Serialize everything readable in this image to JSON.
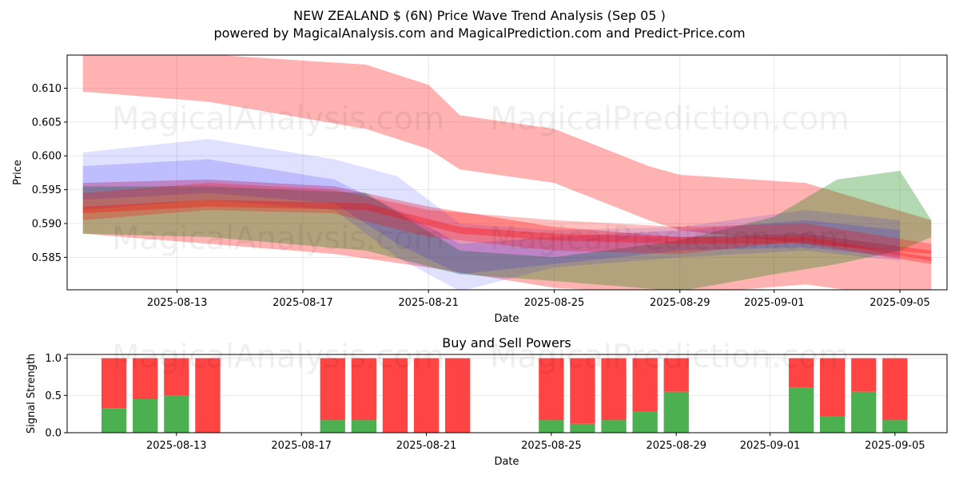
{
  "header": {
    "title": "NEW ZEALAND $ (6N) Price Wave Trend Analysis (Sep 05 )",
    "subtitle": "powered by MagicalAnalysis.com and MagicalPrediction.com and Predict-Price.com"
  },
  "watermarks": [
    "MagicalAnalysis.com",
    "MagicalPrediction.com"
  ],
  "colors": {
    "red": "#ff0000",
    "green": "#008000",
    "blue": "#0000ff",
    "bar_buy": "#4caf50",
    "bar_sell": "#ff4444"
  },
  "chart_data": [
    {
      "type": "area",
      "xlabel": "Date",
      "ylabel": "Price",
      "x_ticks": [
        "2025-08-13",
        "2025-08-17",
        "2025-08-21",
        "2025-08-25",
        "2025-08-29",
        "2025-09-01",
        "2025-09-05"
      ],
      "y_ticks": [
        "0.585",
        "0.590",
        "0.595",
        "0.600",
        "0.605",
        "0.610"
      ],
      "xlim": [
        "2025-08-09T12:00",
        "2025-09-06T12:00"
      ],
      "ylim": [
        0.5802,
        0.6149
      ],
      "grid": true,
      "bands": [
        {
          "color": "red",
          "opacity": 0.3,
          "x": [
            "2025-08-10",
            "2025-08-14",
            "2025-08-19",
            "2025-08-21",
            "2025-08-22",
            "2025-08-25",
            "2025-08-28",
            "2025-08-29",
            "2025-09-02",
            "2025-09-06"
          ],
          "upper": [
            0.6155,
            0.615,
            0.6135,
            0.6105,
            0.606,
            0.604,
            0.5985,
            0.5972,
            0.596,
            0.5905
          ],
          "lower": [
            0.6095,
            0.608,
            0.604,
            0.601,
            0.598,
            0.596,
            0.5905,
            0.589,
            0.587,
            0.5855
          ]
        },
        {
          "color": "red",
          "opacity": 0.3,
          "x": [
            "2025-08-10",
            "2025-08-14",
            "2025-08-18",
            "2025-08-21",
            "2025-08-25",
            "2025-08-29",
            "2025-09-02",
            "2025-09-06"
          ],
          "upper": [
            0.596,
            0.5965,
            0.5955,
            0.5925,
            0.5895,
            0.588,
            0.5885,
            0.586
          ],
          "lower": [
            0.5885,
            0.587,
            0.5855,
            0.5835,
            0.5805,
            0.5795,
            0.581,
            0.5785
          ]
        },
        {
          "color": "green",
          "opacity": 0.3,
          "x": [
            "2025-08-10",
            "2025-08-14",
            "2025-08-19",
            "2025-08-22",
            "2025-08-25",
            "2025-08-29",
            "2025-09-01",
            "2025-09-03",
            "2025-09-05",
            "2025-09-06"
          ],
          "upper": [
            0.5955,
            0.5955,
            0.5945,
            0.586,
            0.585,
            0.5875,
            0.591,
            0.5965,
            0.5978,
            0.5905
          ],
          "lower": [
            0.5885,
            0.588,
            0.586,
            0.5825,
            0.5815,
            0.58,
            0.5825,
            0.584,
            0.586,
            0.588
          ]
        },
        {
          "color": "blue",
          "opacity": 0.12,
          "x": [
            "2025-08-10",
            "2025-08-14",
            "2025-08-18",
            "2025-08-20",
            "2025-08-22",
            "2025-08-25",
            "2025-08-29",
            "2025-09-02",
            "2025-09-05"
          ],
          "upper": [
            0.6005,
            0.6025,
            0.5995,
            0.597,
            0.59,
            0.589,
            0.5895,
            0.592,
            0.5905
          ],
          "lower": [
            0.592,
            0.5935,
            0.592,
            0.585,
            0.58,
            0.5835,
            0.585,
            0.586,
            0.5845
          ]
        },
        {
          "color": "blue",
          "opacity": 0.15,
          "x": [
            "2025-08-10",
            "2025-08-14",
            "2025-08-18",
            "2025-08-20",
            "2025-08-22",
            "2025-08-25",
            "2025-08-29",
            "2025-09-02",
            "2025-09-05"
          ],
          "upper": [
            0.5985,
            0.5995,
            0.5965,
            0.592,
            0.587,
            0.588,
            0.589,
            0.5905,
            0.589
          ],
          "lower": [
            0.5935,
            0.5945,
            0.593,
            0.587,
            0.5825,
            0.584,
            0.586,
            0.5865,
            0.585
          ]
        },
        {
          "color": "red",
          "opacity": 0.25,
          "x": [
            "2025-08-10",
            "2025-08-14",
            "2025-08-18",
            "2025-08-21",
            "2025-08-25",
            "2025-08-29",
            "2025-09-02",
            "2025-09-06"
          ],
          "upper": [
            0.5945,
            0.596,
            0.595,
            0.592,
            0.5905,
            0.5895,
            0.59,
            0.587
          ],
          "lower": [
            0.5905,
            0.592,
            0.5915,
            0.588,
            0.586,
            0.5855,
            0.5875,
            0.5845
          ]
        },
        {
          "color": "red",
          "opacity": 0.3,
          "x": [
            "2025-08-10",
            "2025-08-14",
            "2025-08-19",
            "2025-08-22",
            "2025-08-25",
            "2025-08-29",
            "2025-09-02",
            "2025-09-06"
          ],
          "upper": [
            0.5925,
            0.5935,
            0.593,
            0.5895,
            0.5885,
            0.588,
            0.588,
            0.585
          ],
          "lower": [
            0.5915,
            0.5925,
            0.592,
            0.5885,
            0.5875,
            0.587,
            0.587,
            0.584
          ]
        }
      ]
    },
    {
      "type": "bar",
      "title": "Buy and Sell Powers",
      "xlabel": "Date",
      "ylabel": "Signal Strength",
      "ylim": [
        0,
        1.05
      ],
      "y_ticks": [
        "0.0",
        "0.5",
        "1.0"
      ],
      "x_ticks": [
        "2025-08-13",
        "2025-08-17",
        "2025-08-21",
        "2025-08-25",
        "2025-08-29",
        "2025-09-01",
        "2025-09-05"
      ],
      "xlim": [
        "2025-08-09T12:00",
        "2025-09-06T16:00"
      ],
      "grid": true,
      "dates": [
        "2025-08-11",
        "2025-08-12",
        "2025-08-13",
        "2025-08-14",
        "2025-08-18",
        "2025-08-19",
        "2025-08-20",
        "2025-08-21",
        "2025-08-22",
        "2025-08-25",
        "2025-08-26",
        "2025-08-27",
        "2025-08-28",
        "2025-08-29",
        "2025-09-02",
        "2025-09-03",
        "2025-09-04",
        "2025-09-05"
      ],
      "buy": [
        0.33,
        0.45,
        0.5,
        0.0,
        0.17,
        0.17,
        0.0,
        0.0,
        0.0,
        0.17,
        0.12,
        0.17,
        0.28,
        0.55,
        0.61,
        0.22,
        0.55,
        0.17
      ],
      "sell": [
        0.67,
        0.55,
        0.5,
        1.0,
        0.83,
        0.83,
        1.0,
        1.0,
        1.0,
        0.83,
        0.88,
        0.83,
        0.72,
        0.45,
        0.39,
        0.78,
        0.45,
        0.83
      ]
    }
  ]
}
